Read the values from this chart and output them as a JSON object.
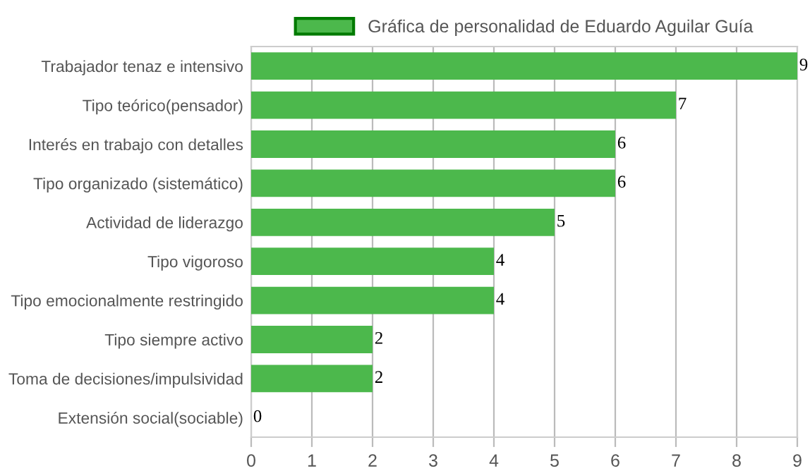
{
  "chart_data": {
    "type": "bar",
    "orientation": "horizontal",
    "categories": [
      "Trabajador tenaz e intensivo",
      "Tipo teórico(pensador)",
      "Interés en trabajo con detalles",
      "Tipo organizado (sistemático)",
      "Actividad de liderazgo",
      "Tipo vigoroso",
      "Tipo emocionalmente restringido",
      "Tipo siempre activo",
      "Toma de decisiones/impulsividad",
      "Extensión social(sociable)"
    ],
    "series": [
      {
        "name": "Gráfica de personalidad de Eduardo Aguilar Guía",
        "color": "#4cb84c",
        "values": [
          9,
          7,
          6,
          6,
          5,
          4,
          4,
          2,
          2,
          0
        ]
      }
    ],
    "xlim": [
      0,
      9
    ],
    "xticks": [
      0,
      1,
      2,
      3,
      4,
      5,
      6,
      7,
      8,
      9
    ],
    "grid": "x",
    "legend": "top",
    "data_labels": true
  }
}
